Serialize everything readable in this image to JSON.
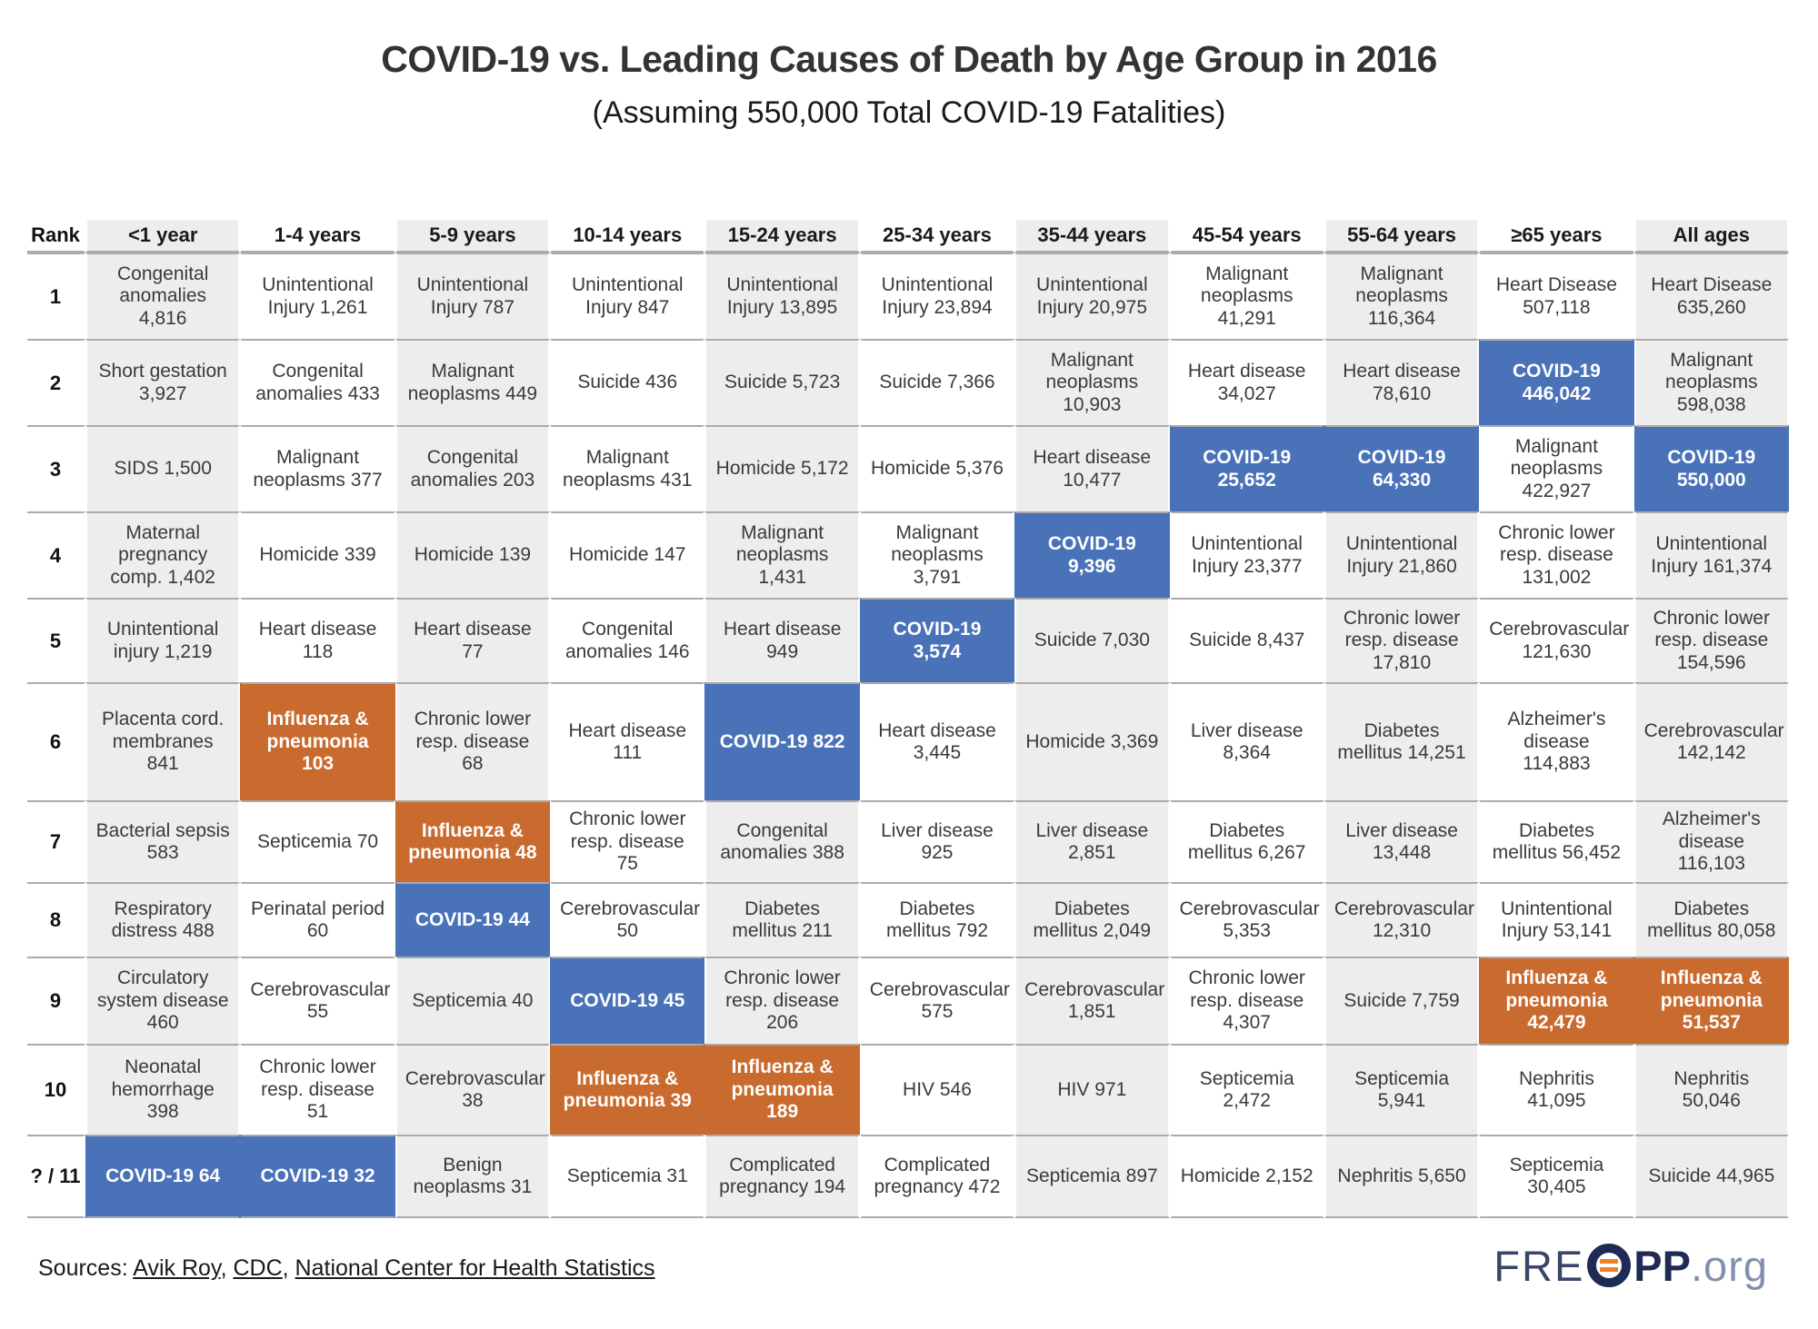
{
  "title": "COVID-19 vs. Leading Causes of Death by Age Group in 2016",
  "subtitle": "(Assuming 550,000 Total COVID-19 Fatalities)",
  "colors": {
    "covid_blue": "#4a72b8",
    "flu_orange": "#c96a2e",
    "stripe_gray": "#ededed",
    "row_line": "#ababab"
  },
  "chart_data": {
    "type": "table",
    "title": "COVID-19 vs. Leading Causes of Death by Age Group in 2016",
    "subtitle": "(Assuming 550,000 Total COVID-19 Fatalities)",
    "highlight_legend": {
      "covid": "COVID-19 (blue)",
      "flu": "Influenza & pneumonia (orange)"
    },
    "columns": [
      "Rank",
      "<1 year",
      "1-4 years",
      "5-9 years",
      "10-14 years",
      "15-24 years",
      "25-34 years",
      "35-44 years",
      "45-54 years",
      "55-64 years",
      "≥65 years",
      "All ages"
    ],
    "rows": [
      {
        "rank": "1",
        "cells": [
          {
            "t": "Congenital anomalies 4,816"
          },
          {
            "t": "Unintentional Injury 1,261"
          },
          {
            "t": "Unintentional Injury 787"
          },
          {
            "t": "Unintentional Injury 847"
          },
          {
            "t": "Unintentional Injury 13,895"
          },
          {
            "t": "Unintentional Injury 23,894"
          },
          {
            "t": "Unintentional Injury 20,975"
          },
          {
            "t": "Malignant neoplasms 41,291"
          },
          {
            "t": "Malignant neoplasms 116,364"
          },
          {
            "t": "Heart Disease 507,118"
          },
          {
            "t": "Heart Disease 635,260"
          }
        ]
      },
      {
        "rank": "2",
        "cells": [
          {
            "t": "Short gestation 3,927"
          },
          {
            "t": "Congenital anomalies 433"
          },
          {
            "t": "Malignant neoplasms 449"
          },
          {
            "t": "Suicide 436"
          },
          {
            "t": "Suicide 5,723"
          },
          {
            "t": "Suicide 7,366"
          },
          {
            "t": "Malignant neoplasms 10,903"
          },
          {
            "t": "Heart disease 34,027"
          },
          {
            "t": "Heart disease 78,610"
          },
          {
            "t": "COVID-19 446,042",
            "h": "covid"
          },
          {
            "t": "Malignant neoplasms 598,038"
          }
        ]
      },
      {
        "rank": "3",
        "cells": [
          {
            "t": "SIDS 1,500"
          },
          {
            "t": "Malignant neoplasms 377"
          },
          {
            "t": "Congenital anomalies 203"
          },
          {
            "t": "Malignant neoplasms 431"
          },
          {
            "t": "Homicide 5,172"
          },
          {
            "t": "Homicide 5,376"
          },
          {
            "t": "Heart disease 10,477"
          },
          {
            "t": "COVID-19 25,652",
            "h": "covid"
          },
          {
            "t": "COVID-19 64,330",
            "h": "covid"
          },
          {
            "t": "Malignant neoplasms 422,927"
          },
          {
            "t": "COVID-19 550,000",
            "h": "covid"
          }
        ]
      },
      {
        "rank": "4",
        "cells": [
          {
            "t": "Maternal pregnancy comp. 1,402"
          },
          {
            "t": "Homicide 339"
          },
          {
            "t": "Homicide 139"
          },
          {
            "t": "Homicide 147"
          },
          {
            "t": "Malignant neoplasms 1,431"
          },
          {
            "t": "Malignant neoplasms 3,791"
          },
          {
            "t": "COVID-19 9,396",
            "h": "covid"
          },
          {
            "t": "Unintentional Injury 23,377"
          },
          {
            "t": "Unintentional Injury 21,860"
          },
          {
            "t": "Chronic lower resp. disease 131,002"
          },
          {
            "t": "Unintentional Injury 161,374"
          }
        ]
      },
      {
        "rank": "5",
        "cells": [
          {
            "t": "Unintentional injury 1,219"
          },
          {
            "t": "Heart disease 118"
          },
          {
            "t": "Heart disease 77"
          },
          {
            "t": "Congenital anomalies 146"
          },
          {
            "t": "Heart disease 949"
          },
          {
            "t": "COVID-19 3,574",
            "h": "covid"
          },
          {
            "t": "Suicide 7,030"
          },
          {
            "t": "Suicide 8,437"
          },
          {
            "t": "Chronic lower resp. disease 17,810"
          },
          {
            "t": "Cerebrovascular 121,630"
          },
          {
            "t": "Chronic lower resp. disease 154,596"
          }
        ]
      },
      {
        "rank": "6",
        "cells": [
          {
            "t": "Placenta cord. membranes 841"
          },
          {
            "t": "Influenza & pneumonia 103",
            "h": "flu"
          },
          {
            "t": "Chronic lower resp. disease 68"
          },
          {
            "t": "Heart disease 111"
          },
          {
            "t": "COVID-19 822",
            "h": "covid"
          },
          {
            "t": "Heart disease 3,445"
          },
          {
            "t": "Homicide 3,369"
          },
          {
            "t": "Liver disease 8,364"
          },
          {
            "t": "Diabetes mellitus 14,251"
          },
          {
            "t": "Alzheimer's disease 114,883"
          },
          {
            "t": "Cerebrovascular 142,142"
          }
        ]
      },
      {
        "rank": "7",
        "cells": [
          {
            "t": "Bacterial sepsis 583"
          },
          {
            "t": "Septicemia 70"
          },
          {
            "t": "Influenza & pneumonia 48",
            "h": "flu"
          },
          {
            "t": "Chronic lower resp. disease 75"
          },
          {
            "t": "Congenital anomalies 388"
          },
          {
            "t": "Liver disease 925"
          },
          {
            "t": "Liver disease 2,851"
          },
          {
            "t": "Diabetes mellitus 6,267"
          },
          {
            "t": "Liver disease 13,448"
          },
          {
            "t": "Diabetes mellitus 56,452"
          },
          {
            "t": "Alzheimer's disease 116,103"
          }
        ]
      },
      {
        "rank": "8",
        "cells": [
          {
            "t": "Respiratory distress 488"
          },
          {
            "t": "Perinatal period 60"
          },
          {
            "t": "COVID-19 44",
            "h": "covid"
          },
          {
            "t": "Cerebrovascular 50"
          },
          {
            "t": "Diabetes mellitus 211"
          },
          {
            "t": "Diabetes mellitus 792"
          },
          {
            "t": "Diabetes mellitus 2,049"
          },
          {
            "t": "Cerebrovascular 5,353"
          },
          {
            "t": "Cerebrovascular 12,310"
          },
          {
            "t": "Unintentional Injury 53,141"
          },
          {
            "t": "Diabetes mellitus 80,058"
          }
        ]
      },
      {
        "rank": "9",
        "cells": [
          {
            "t": "Circulatory system disease 460"
          },
          {
            "t": "Cerebrovascular 55"
          },
          {
            "t": "Septicemia 40"
          },
          {
            "t": "COVID-19 45",
            "h": "covid"
          },
          {
            "t": "Chronic lower resp. disease 206"
          },
          {
            "t": "Cerebrovascular 575"
          },
          {
            "t": "Cerebrovascular 1,851"
          },
          {
            "t": "Chronic lower resp. disease 4,307"
          },
          {
            "t": "Suicide 7,759"
          },
          {
            "t": "Influenza & pneumonia 42,479",
            "h": "flu"
          },
          {
            "t": "Influenza & pneumonia 51,537",
            "h": "flu"
          }
        ]
      },
      {
        "rank": "10",
        "cells": [
          {
            "t": "Neonatal hemorrhage 398"
          },
          {
            "t": "Chronic lower resp. disease 51"
          },
          {
            "t": "Cerebrovascular 38"
          },
          {
            "t": "Influenza & pneumonia 39",
            "h": "flu"
          },
          {
            "t": "Influenza & pneumonia 189",
            "h": "flu"
          },
          {
            "t": "HIV 546"
          },
          {
            "t": "HIV 971"
          },
          {
            "t": "Septicemia 2,472"
          },
          {
            "t": "Septicemia 5,941"
          },
          {
            "t": "Nephritis 41,095"
          },
          {
            "t": "Nephritis 50,046"
          }
        ]
      },
      {
        "rank": "? / 11",
        "cells": [
          {
            "t": "COVID-19 64",
            "h": "covid"
          },
          {
            "t": "COVID-19 32",
            "h": "covid"
          },
          {
            "t": "Benign neoplasms 31"
          },
          {
            "t": "Septicemia 31"
          },
          {
            "t": "Complicated pregnancy 194"
          },
          {
            "t": "Complicated pregnancy 472"
          },
          {
            "t": "Septicemia 897"
          },
          {
            "t": "Homicide 2,152"
          },
          {
            "t": "Nephritis 5,650"
          },
          {
            "t": "Septicemia 30,405"
          },
          {
            "t": "Suicide 44,965"
          }
        ]
      }
    ]
  },
  "footer": {
    "prefix": "Sources: ",
    "separator": ", ",
    "links": [
      "Avik Roy",
      "CDC",
      "National Center for Health Statistics"
    ]
  },
  "logo": {
    "fre": "FRE",
    "pp": "PP",
    "org": ".org"
  }
}
